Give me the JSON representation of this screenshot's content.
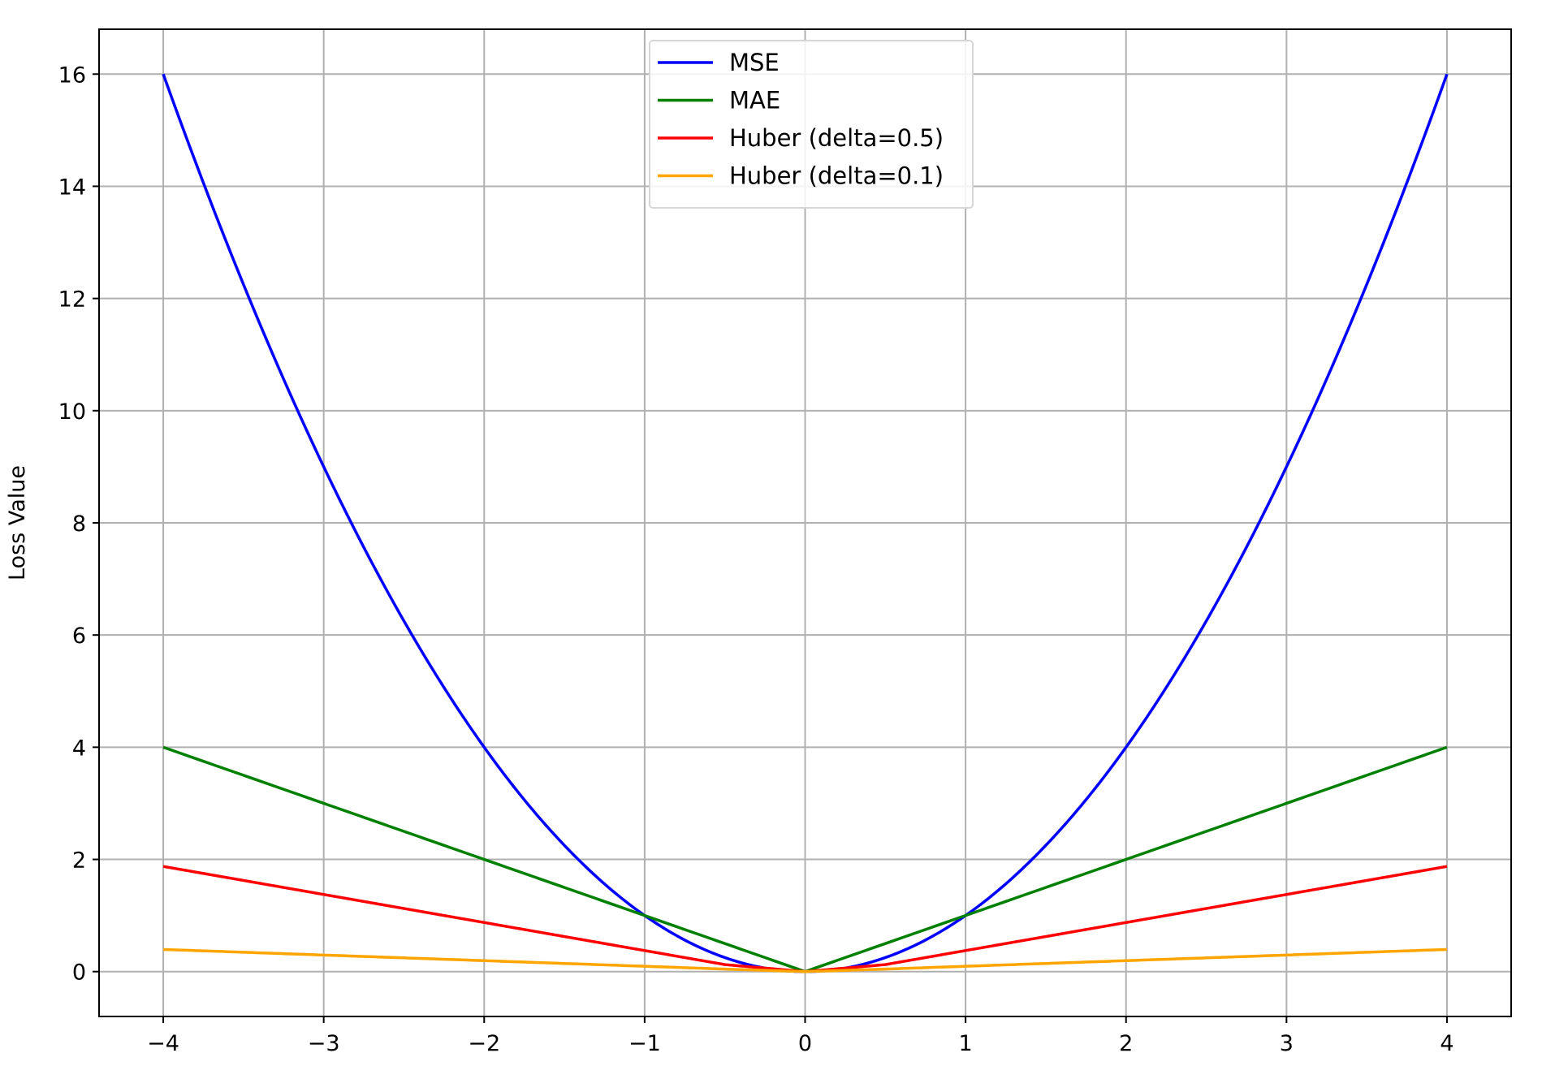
{
  "chart_data": {
    "type": "line",
    "title": "",
    "xlabel": "",
    "ylabel": "Loss Value",
    "xlim": [
      -4.4,
      4.4
    ],
    "ylim": [
      -0.8,
      16.8
    ],
    "xticks": [
      -4,
      -3,
      -2,
      -1,
      0,
      1,
      2,
      3,
      4
    ],
    "xtick_labels": [
      "−4",
      "−3",
      "−2",
      "−1",
      "0",
      "1",
      "2",
      "3",
      "4"
    ],
    "yticks": [
      0,
      2,
      4,
      6,
      8,
      10,
      12,
      14,
      16
    ],
    "ytick_labels": [
      "0",
      "2",
      "4",
      "6",
      "8",
      "10",
      "12",
      "14",
      "16"
    ],
    "grid": true,
    "legend_position": "top-center",
    "x": [
      -4,
      -3.5,
      -3,
      -2.5,
      -2,
      -1.5,
      -1,
      -0.5,
      0,
      0.5,
      1,
      1.5,
      2,
      2.5,
      3,
      3.5,
      4
    ],
    "series": [
      {
        "name": "MSE",
        "color": "#0000ff",
        "values": [
          16,
          12.25,
          9,
          6.25,
          4,
          2.25,
          1,
          0.25,
          0,
          0.25,
          1,
          2.25,
          4,
          6.25,
          9,
          12.25,
          16
        ]
      },
      {
        "name": "MAE",
        "color": "#008000",
        "values": [
          4,
          3.5,
          3,
          2.5,
          2,
          1.5,
          1,
          0.5,
          0,
          0.5,
          1,
          1.5,
          2,
          2.5,
          3,
          3.5,
          4
        ]
      },
      {
        "name": "Huber (delta=0.5)",
        "color": "#ff0000",
        "values": [
          1.875,
          1.625,
          1.375,
          1.125,
          0.875,
          0.625,
          0.375,
          0.125,
          0,
          0.125,
          0.375,
          0.625,
          0.875,
          1.125,
          1.375,
          1.625,
          1.875
        ]
      },
      {
        "name": "Huber (delta=0.1)",
        "color": "#ffa500",
        "values": [
          0.395,
          0.345,
          0.295,
          0.245,
          0.195,
          0.145,
          0.095,
          0.045,
          0,
          0.045,
          0.095,
          0.145,
          0.195,
          0.245,
          0.295,
          0.345,
          0.395
        ]
      }
    ]
  }
}
